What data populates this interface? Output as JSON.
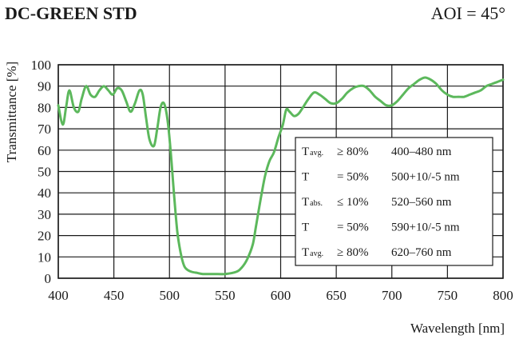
{
  "header": {
    "title": "DC-GREEN STD",
    "aoi": "AOI = 45°"
  },
  "chart_data": {
    "type": "line",
    "title": "DC-GREEN STD",
    "xlabel": "Wavelength [nm]",
    "ylabel": "Transmittance [%]",
    "xlim": [
      400,
      800
    ],
    "ylim": [
      0,
      100
    ],
    "xticks": [
      400,
      450,
      500,
      550,
      600,
      650,
      700,
      750,
      800
    ],
    "yticks": [
      0,
      10,
      20,
      30,
      40,
      50,
      60,
      70,
      80,
      90,
      100
    ],
    "grid": true,
    "series": [
      {
        "color": "#5cb85c",
        "x": [
          400,
          404,
          407,
          410,
          414,
          418,
          421,
          425,
          429,
          433,
          437,
          441,
          445,
          449,
          453,
          457,
          461,
          465,
          469,
          473,
          476,
          479,
          482,
          486,
          489,
          492,
          495,
          498,
          501,
          504,
          507,
          510,
          513,
          516,
          520,
          525,
          530,
          540,
          550,
          560,
          565,
          570,
          575,
          578,
          582,
          586,
          590,
          594,
          598,
          602,
          605,
          608,
          612,
          616,
          620,
          625,
          630,
          635,
          640,
          645,
          650,
          655,
          660,
          665,
          670,
          675,
          680,
          685,
          690,
          695,
          700,
          705,
          710,
          715,
          720,
          725,
          730,
          735,
          740,
          745,
          750,
          755,
          760,
          765,
          770,
          775,
          780,
          785,
          790,
          795,
          800
        ],
        "y": [
          81,
          72,
          80,
          88,
          80,
          78,
          84,
          90,
          86,
          85,
          88,
          90,
          88,
          86,
          89,
          88,
          83,
          78,
          82,
          88,
          86,
          75,
          65,
          62,
          70,
          80,
          82,
          75,
          60,
          40,
          22,
          12,
          6,
          4,
          3,
          2.5,
          2,
          2,
          2,
          3,
          5,
          9,
          16,
          25,
          37,
          48,
          55,
          59,
          66,
          72,
          79,
          78,
          76,
          77,
          80,
          84,
          87,
          86,
          84,
          82,
          82,
          84,
          87,
          89,
          90,
          90,
          88,
          85,
          83,
          81,
          81,
          83,
          86,
          89,
          91,
          93,
          94,
          93,
          91,
          88,
          86,
          85,
          85,
          85,
          86,
          87,
          88,
          90,
          91,
          92,
          93
        ]
      }
    ],
    "spec_table": [
      {
        "symbol": "T",
        "sub": "avg.",
        "cond": "≥ 80%",
        "range": "400–480 nm"
      },
      {
        "symbol": "T",
        "sub": "",
        "cond": "= 50%",
        "range": "500+10/-5 nm"
      },
      {
        "symbol": "T",
        "sub": "abs.",
        "cond": "≤ 10%",
        "range": "520–560 nm"
      },
      {
        "symbol": "T",
        "sub": "",
        "cond": "= 50%",
        "range": "590+10/-5 nm"
      },
      {
        "symbol": "T",
        "sub": "avg.",
        "cond": "≥ 80%",
        "range": "620–760 nm"
      }
    ]
  }
}
